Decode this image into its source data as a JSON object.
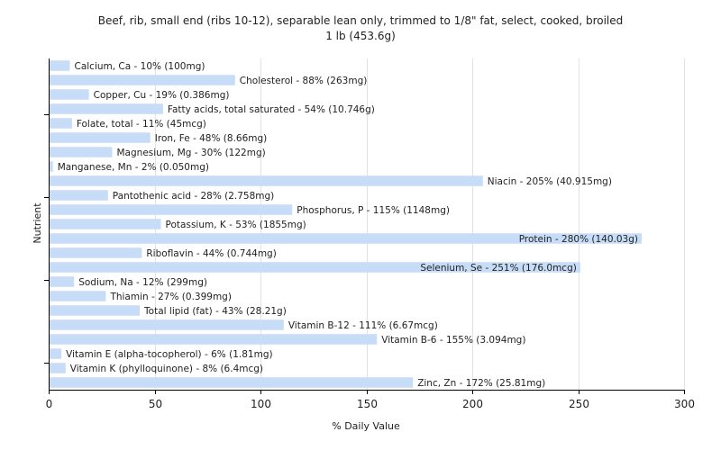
{
  "chart_data": {
    "type": "bar",
    "orientation": "horizontal",
    "title": "Beef, rib, small end (ribs 10-12), separable lean only, trimmed to 1/8\" fat, select, cooked, broiled",
    "subtitle": "1 lb (453.6g)",
    "xlabel": "% Daily Value",
    "ylabel": "Nutrient",
    "xlim": [
      0,
      300
    ],
    "xticks": [
      "0",
      "50",
      "100",
      "150",
      "200",
      "250",
      "300"
    ],
    "grid": true,
    "bar_color": "#c6dcf7",
    "categories": [
      "Calcium, Ca",
      "Cholesterol",
      "Copper, Cu",
      "Fatty acids, total saturated",
      "Folate, total",
      "Iron, Fe",
      "Magnesium, Mg",
      "Manganese, Mn",
      "Niacin",
      "Pantothenic acid",
      "Phosphorus, P",
      "Potassium, K",
      "Protein",
      "Riboflavin",
      "Selenium, Se",
      "Sodium, Na",
      "Thiamin",
      "Total lipid (fat)",
      "Vitamin B-12",
      "Vitamin B-6",
      "Vitamin E (alpha-tocopherol)",
      "Vitamin K (phylloquinone)",
      "Zinc, Zn"
    ],
    "values": [
      10,
      88,
      19,
      54,
      11,
      48,
      30,
      2,
      205,
      28,
      115,
      53,
      280,
      44,
      251,
      12,
      27,
      43,
      111,
      155,
      6,
      8,
      172
    ],
    "labels": [
      "Calcium, Ca - 10% (100mg)",
      "Cholesterol - 88% (263mg)",
      "Copper, Cu - 19% (0.386mg)",
      "Fatty acids, total saturated - 54% (10.746g)",
      "Folate, total - 11% (45mcg)",
      "Iron, Fe - 48% (8.66mg)",
      "Magnesium, Mg - 30% (122mg)",
      "Manganese, Mn - 2% (0.050mg)",
      "Niacin - 205% (40.915mg)",
      "Pantothenic acid - 28% (2.758mg)",
      "Phosphorus, P - 115% (1148mg)",
      "Potassium, K - 53% (1855mg)",
      "Protein - 280% (140.03g)",
      "Riboflavin - 44% (0.744mg)",
      "Selenium, Se - 251% (176.0mcg)",
      "Sodium, Na - 12% (299mg)",
      "Thiamin - 27% (0.399mg)",
      "Total lipid (fat) - 43% (28.21g)",
      "Vitamin B-12 - 111% (6.67mcg)",
      "Vitamin B-6 - 155% (3.094mg)",
      "Vitamin E (alpha-tocopherol) - 6% (1.81mg)",
      "Vitamin K (phylloquinone) - 8% (6.4mcg)",
      "Zinc, Zn - 172% (25.81mg)"
    ]
  }
}
